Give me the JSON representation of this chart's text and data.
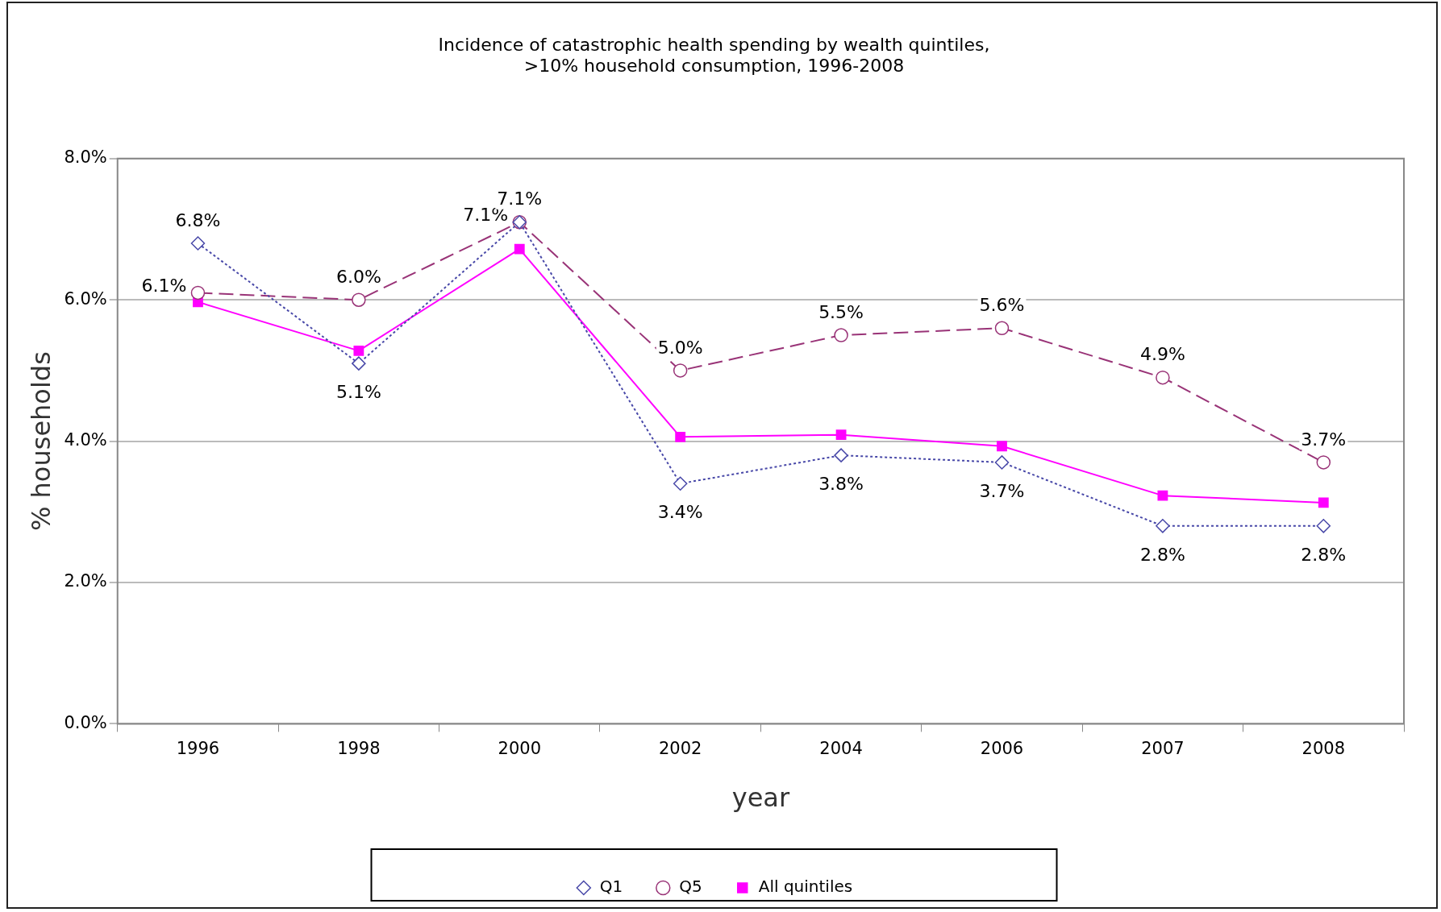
{
  "chart_data": {
    "type": "line",
    "title": "Incidence of catastrophic health spending by wealth quintiles,\n>10% household consumption, 1996-2008",
    "xlabel": "year",
    "ylabel": "% households",
    "categories": [
      "1996",
      "1998",
      "2000",
      "2002",
      "2004",
      "2006",
      "2007",
      "2008"
    ],
    "series": [
      {
        "name": "Q1",
        "color": "#4848a8",
        "marker": "diamond",
        "line_style": "dotted",
        "values": [
          6.8,
          5.1,
          7.1,
          3.4,
          3.8,
          3.7,
          2.8,
          2.8
        ],
        "value_labels": [
          "6.8%",
          "5.1%",
          "7.1%",
          "3.4%",
          "3.8%",
          "3.7%",
          "2.8%",
          "2.8%"
        ]
      },
      {
        "name": "Q5",
        "color": "#993377",
        "marker": "circle",
        "line_style": "dashed",
        "values": [
          6.1,
          6.0,
          7.1,
          5.0,
          5.5,
          5.6,
          4.9,
          3.7
        ],
        "value_labels": [
          "6.1%",
          "6.0%",
          "7.1%",
          "5.0%",
          "5.5%",
          "5.6%",
          "4.9%",
          "3.7%"
        ]
      },
      {
        "name": "All quintiles",
        "color": "#ff00ff",
        "marker": "square",
        "line_style": "solid",
        "values": [
          5.97,
          5.28,
          6.72,
          4.06,
          4.09,
          3.93,
          3.23,
          3.13
        ]
      }
    ],
    "ylim": [
      0,
      8
    ],
    "yticks": [
      {
        "value": 0,
        "label": "0.0%"
      },
      {
        "value": 2,
        "label": "2.0%"
      },
      {
        "value": 4,
        "label": "4.0%"
      },
      {
        "value": 6,
        "label": "6.0%"
      },
      {
        "value": 8,
        "label": "8.0%"
      }
    ],
    "grid": "y",
    "legend": "bottom"
  }
}
